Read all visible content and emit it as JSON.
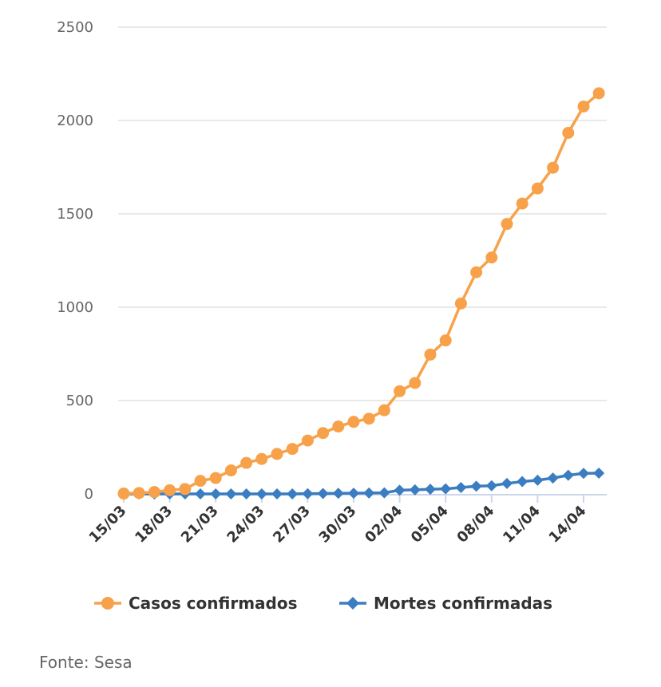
{
  "chart_data": {
    "type": "line",
    "title": "",
    "xlabel": "",
    "ylabel": "",
    "ylim": [
      0,
      2500
    ],
    "yticks": [
      0,
      500,
      1000,
      1500,
      2000,
      2500
    ],
    "grid": true,
    "legend_position": "bottom",
    "x": [
      "15/03",
      "16/03",
      "17/03",
      "18/03",
      "19/03",
      "20/03",
      "21/03",
      "22/03",
      "23/03",
      "24/03",
      "25/03",
      "26/03",
      "27/03",
      "28/03",
      "29/03",
      "30/03",
      "31/03",
      "01/04",
      "02/04",
      "03/04",
      "04/04",
      "05/04",
      "06/04",
      "07/04",
      "08/04",
      "09/04",
      "10/04",
      "11/04",
      "12/04",
      "13/04",
      "14/04",
      "15/04"
    ],
    "xtick_labels": [
      "15/03",
      "18/03",
      "21/03",
      "24/03",
      "27/03",
      "30/03",
      "02/04",
      "05/04",
      "08/04",
      "11/04",
      "14/04"
    ],
    "series": [
      {
        "name": "Casos confirmados",
        "color": "#f7a24b",
        "marker": "circle",
        "values": [
          2,
          5,
          10,
          20,
          26,
          70,
          85,
          126,
          166,
          187,
          214,
          241,
          286,
          326,
          361,
          386,
          403,
          448,
          550,
          594,
          746,
          822,
          1020,
          1187,
          1266,
          1446,
          1555,
          1636,
          1747,
          1934,
          2075,
          2146
        ]
      },
      {
        "name": "Mortes confirmadas",
        "color": "#3a7dc0",
        "marker": "diamond",
        "values": [
          0,
          0,
          0,
          0,
          0,
          0,
          0,
          0,
          0,
          0,
          0,
          0,
          1,
          2,
          3,
          4,
          5,
          6,
          20,
          22,
          25,
          27,
          34,
          41,
          44,
          56,
          66,
          73,
          85,
          100,
          110,
          111
        ]
      }
    ]
  },
  "source": "Fonte: Sesa"
}
